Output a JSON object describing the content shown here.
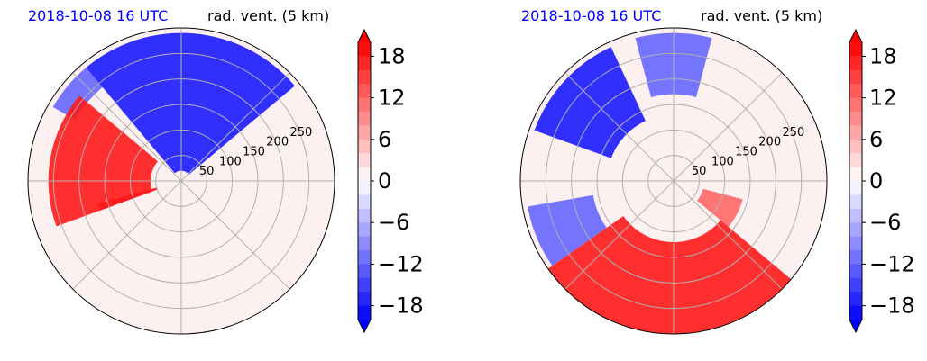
{
  "chart_data": [
    {
      "type": "heatmap",
      "projection": "polar",
      "title_left": "2018-10-08 16 UTC",
      "title_right": "rad. vent. (5 km)",
      "radial_ticks": [
        "50",
        "100",
        "150",
        "200",
        "250"
      ],
      "rlim": [
        0,
        300
      ],
      "grid": true,
      "colorbar": {
        "ticks": [
          "18",
          "12",
          "6",
          "0",
          "−6",
          "−12",
          "−18"
        ],
        "tick_values": [
          18,
          12,
          6,
          0,
          -6,
          -12,
          -18
        ],
        "range": [
          -20,
          20
        ],
        "extend": "both",
        "colormap": "bwr",
        "low_color": "#0000ff",
        "mid_color": "#ffffff",
        "high_color": "#ff0000"
      },
      "regions": [
        {
          "sign": "negative",
          "value": -18,
          "theta_deg": [
            40,
            130
          ],
          "r": [
            20,
            290
          ]
        },
        {
          "sign": "negative",
          "value": -12,
          "theta_deg": [
            130,
            150
          ],
          "r": [
            240,
            290
          ]
        },
        {
          "sign": "positive",
          "value": 18,
          "theta_deg": [
            140,
            200
          ],
          "r": [
            60,
            260
          ]
        },
        {
          "sign": "positive",
          "value": 18,
          "theta_deg": [
            195,
            200
          ],
          "r": [
            50,
            170
          ]
        }
      ]
    },
    {
      "type": "heatmap",
      "projection": "polar",
      "title_left": "2018-10-08 16 UTC",
      "title_right": "rad. vent. (5 km)",
      "radial_ticks": [
        "50",
        "100",
        "150",
        "200",
        "250"
      ],
      "rlim": [
        0,
        300
      ],
      "grid": true,
      "colorbar": {
        "ticks": [
          "18",
          "12",
          "6",
          "0",
          "−6",
          "−12",
          "−18"
        ],
        "tick_values": [
          18,
          12,
          6,
          0,
          -6,
          -12,
          -18
        ],
        "range": [
          -20,
          20
        ],
        "extend": "both",
        "colormap": "bwr",
        "low_color": "#0000ff",
        "mid_color": "#ffffff",
        "high_color": "#ff0000"
      },
      "regions": [
        {
          "sign": "negative",
          "value": -18,
          "theta_deg": [
            115,
            160
          ],
          "r": [
            130,
            290
          ]
        },
        {
          "sign": "negative",
          "value": -12,
          "theta_deg": [
            75,
            105
          ],
          "r": [
            170,
            290
          ]
        },
        {
          "sign": "negative",
          "value": -12,
          "theta_deg": [
            190,
            215
          ],
          "r": [
            160,
            290
          ]
        },
        {
          "sign": "positive",
          "value": 18,
          "theta_deg": [
            215,
            320
          ],
          "r": [
            120,
            300
          ]
        },
        {
          "sign": "positive",
          "value": 12,
          "theta_deg": [
            320,
            345
          ],
          "r": [
            60,
            140
          ]
        }
      ]
    }
  ]
}
